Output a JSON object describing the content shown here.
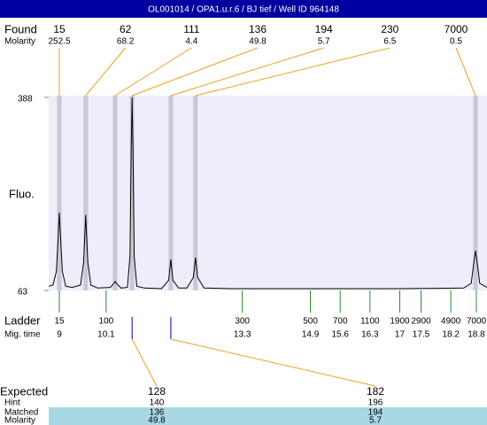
{
  "title": "OL001014 / OPA1.u.r.6 / BJ tief / Well ID 964148",
  "found": {
    "label": "Found",
    "molarity_label": "Molarity",
    "sizes": [
      15,
      62,
      111,
      136,
      194,
      230,
      7000
    ],
    "molarity": [
      252.5,
      68.2,
      4.4,
      49.8,
      5.7,
      6.5,
      0.5
    ]
  },
  "chart_data": {
    "type": "line",
    "y_label": "Fluo.",
    "ylim": [
      63,
      388
    ],
    "yticks": [
      63,
      388
    ],
    "xlim": [
      8.75,
      19.05
    ],
    "markers_x": [
      9.0,
      9.62,
      10.31,
      10.71,
      11.62,
      12.2,
      18.78
    ],
    "x": [
      8.75,
      8.85,
      8.93,
      8.97,
      9.0,
      9.03,
      9.07,
      9.15,
      9.3,
      9.5,
      9.57,
      9.62,
      9.67,
      9.74,
      9.9,
      10.2,
      10.28,
      10.31,
      10.35,
      10.45,
      10.6,
      10.66,
      10.69,
      10.71,
      10.73,
      10.76,
      10.82,
      11.0,
      11.4,
      11.57,
      11.62,
      11.67,
      11.8,
      12.0,
      12.15,
      12.2,
      12.25,
      12.4,
      13,
      15,
      17,
      18.5,
      18.68,
      18.74,
      18.78,
      18.82,
      18.88,
      19.05
    ],
    "values": [
      70,
      72,
      95,
      150,
      194,
      150,
      95,
      70,
      68,
      72,
      110,
      190,
      110,
      72,
      67,
      68,
      75,
      78,
      74,
      67,
      68,
      120,
      300,
      388,
      300,
      120,
      70,
      67,
      66,
      80,
      115,
      80,
      67,
      67,
      85,
      118,
      85,
      67,
      66,
      66,
      66,
      67,
      75,
      110,
      130,
      110,
      75,
      68
    ],
    "color": "#000000"
  },
  "ladder": {
    "label": "Ladder",
    "time_label": "Mig. time",
    "sizes": [
      15,
      100,
      300,
      500,
      700,
      1100,
      1900,
      2900,
      4900,
      7000
    ],
    "times": [
      9,
      10.1,
      13.3,
      14.9,
      15.6,
      16.3,
      17,
      17.5,
      18.2,
      18.8
    ]
  },
  "expected": {
    "labels": [
      "Expected",
      "Hint",
      "Matched",
      "Molarity"
    ],
    "columns": [
      [
        128,
        140,
        136,
        49.8
      ],
      [
        182,
        196,
        194,
        5.7
      ]
    ]
  }
}
